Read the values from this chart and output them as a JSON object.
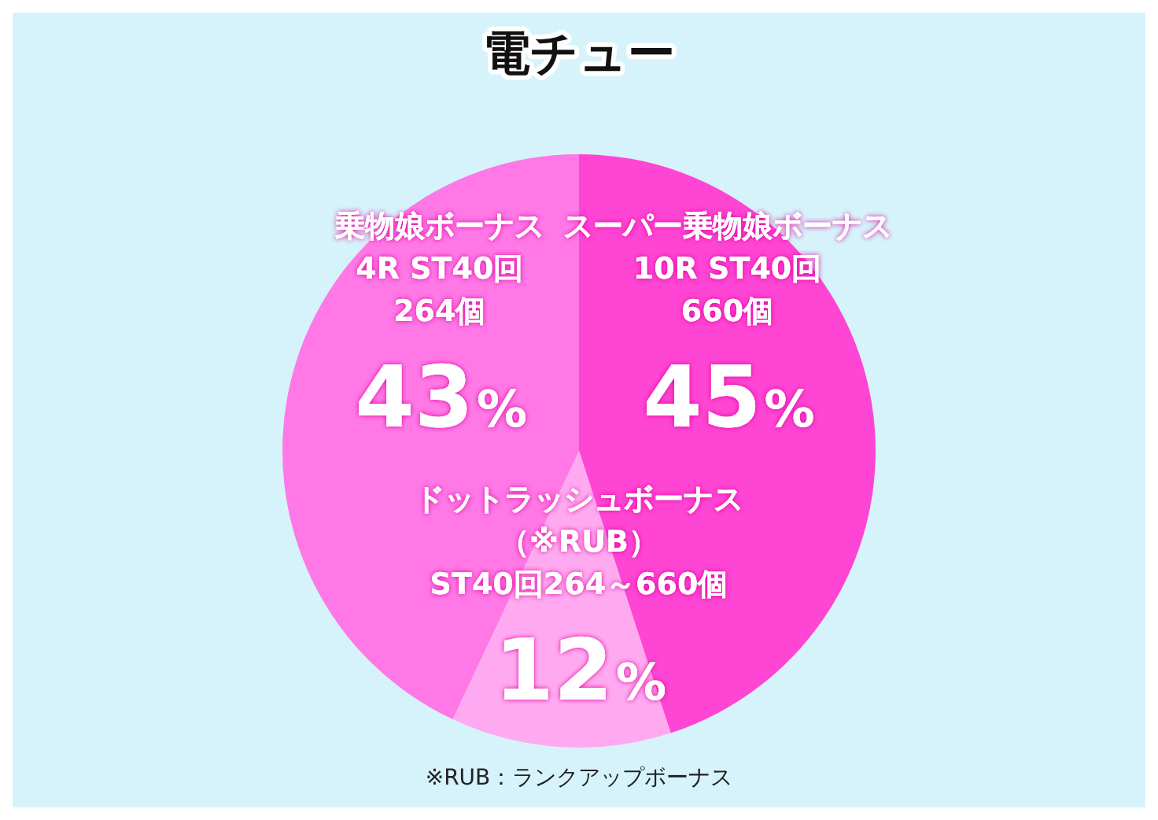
{
  "chart_data": {
    "type": "pie",
    "title": "電チュー",
    "categories": [
      "スーパー乗物娘ボーナス",
      "ドットラッシュボーナス",
      "乗物娘ボーナス"
    ],
    "values": [
      45,
      12,
      43
    ],
    "colors": [
      "#ff45d3",
      "#ffaaf0",
      "#ff78e6"
    ],
    "value_labels": [
      "45%",
      "12%",
      "43%"
    ],
    "annotations": [
      {
        "text": "10R ST40回",
        "x": "スーパー乗物娘ボーナス"
      },
      {
        "text": "660個",
        "x": "スーパー乗物娘ボーナス"
      },
      {
        "text": "（※RUB）",
        "x": "ドットラッシュボーナス"
      },
      {
        "text": "ST40回264～660個",
        "x": "ドットラッシュボーナス"
      },
      {
        "text": "4R ST40回",
        "x": "乗物娘ボーナス"
      },
      {
        "text": "264個",
        "x": "乗物娘ボーナス"
      },
      "※RUB：ランクアップボーナス"
    ],
    "legend": false
  }
}
